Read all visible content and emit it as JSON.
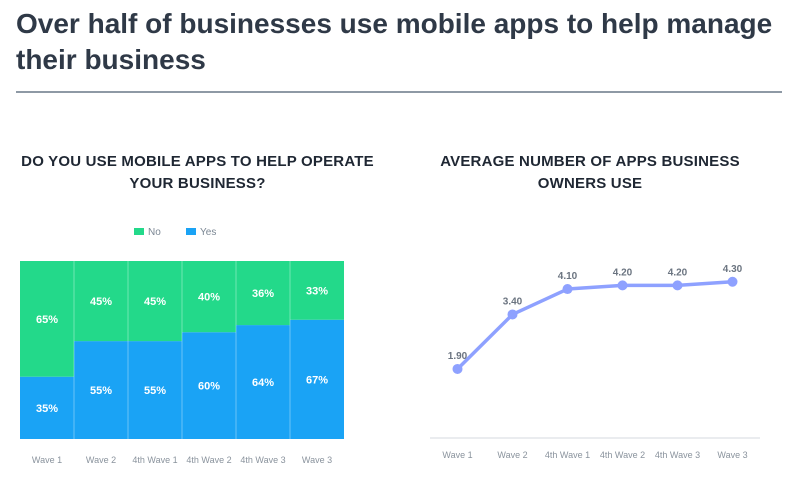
{
  "page": {
    "title": "Over half of businesses use mobile apps to help manage their business"
  },
  "chart_data": [
    {
      "type": "bar",
      "stacked": true,
      "title": "DO YOU USE MOBILE APPS TO HELP OPERATE YOUR BUSINESS?",
      "categories": [
        "Wave 1",
        "Wave 2",
        "4th Wave 1",
        "4th Wave 2",
        "4th Wave 3",
        "Wave 3"
      ],
      "series": [
        {
          "name": "Yes",
          "color": "#1aa3f5",
          "values": [
            35,
            55,
            55,
            60,
            64,
            67
          ]
        },
        {
          "name": "No",
          "color": "#23d98a",
          "values": [
            65,
            45,
            45,
            40,
            36,
            33
          ]
        }
      ],
      "ylim": [
        0,
        100
      ],
      "legend": "top",
      "labels": {
        "Yes": [
          "35%",
          "55%",
          "55%",
          "60%",
          "64%",
          "67%"
        ],
        "No": [
          "65%",
          "45%",
          "45%",
          "40%",
          "36%",
          "33%"
        ]
      }
    },
    {
      "type": "line",
      "title": "AVERAGE NUMBER OF APPS BUSINESS OWNERS USE",
      "categories": [
        "Wave 1",
        "Wave 2",
        "4th Wave 1",
        "4th Wave 2",
        "4th Wave 3",
        "Wave 3"
      ],
      "series": [
        {
          "color": "#8ea1ff",
          "values": [
            1.9,
            3.4,
            4.1,
            4.2,
            4.2,
            4.3
          ]
        }
      ],
      "labels": [
        "1.90",
        "3.40",
        "4.10",
        "4.20",
        "4.20",
        "4.30"
      ],
      "ylim": [
        0,
        6
      ],
      "grid": false
    }
  ]
}
